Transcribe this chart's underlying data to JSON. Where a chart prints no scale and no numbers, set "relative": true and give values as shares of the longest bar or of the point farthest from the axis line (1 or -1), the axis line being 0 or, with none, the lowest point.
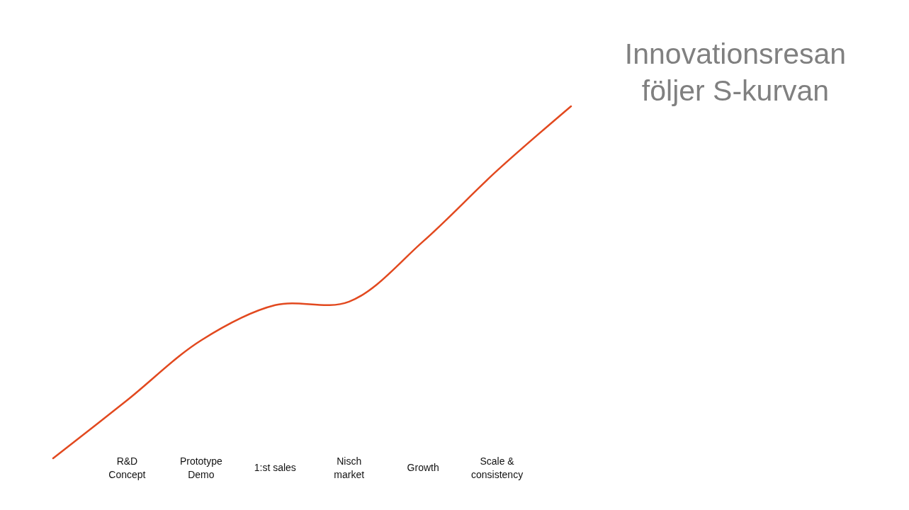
{
  "chart_data": {
    "type": "line",
    "relative": true,
    "title": "Innovationsresan\nföljer S-kurvan",
    "categories": [
      null,
      "R&D\nConcept",
      "Prototype\nDemo",
      "1:st sales",
      "Nisch\nmarket",
      "Growth",
      "Scale &\nconsistency",
      null
    ],
    "series": [
      {
        "color": "#e2491f",
        "values": [
          0,
          0.165,
          0.335,
          0.435,
          0.445,
          0.616,
          0.817,
          1
        ]
      }
    ],
    "marker": "none",
    "line_style": "solid"
  }
}
